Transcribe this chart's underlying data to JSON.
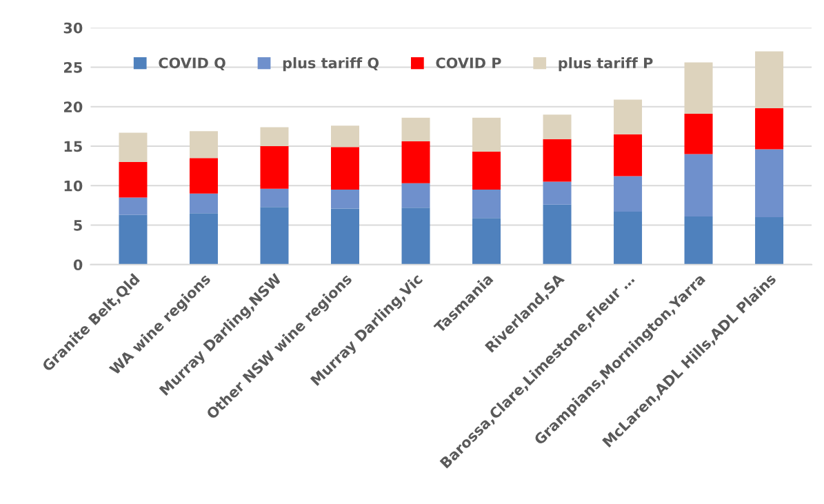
{
  "chart_data": {
    "type": "bar",
    "stacked": true,
    "categories": [
      "Granite Belt,Qld",
      "WA wine regions",
      "Murray Darling,NSW",
      "Other NSW wine regions",
      "Murray Darling,Vic",
      "Tasmania",
      "Riverland,SA",
      "Barossa,Clare,Limestone,Fleur …",
      "Grampians,Mornington,Yarra",
      "McLaren,ADL Hills,ADL Plains"
    ],
    "series": [
      {
        "name": "COVID Q",
        "color": "#4f81bd",
        "values": [
          6.3,
          6.5,
          7.3,
          7.1,
          7.2,
          5.9,
          7.6,
          6.7,
          6.1,
          6.0
        ]
      },
      {
        "name": "plus tariff Q",
        "color": "#6f90cc",
        "values": [
          2.2,
          2.5,
          2.3,
          2.4,
          3.1,
          3.6,
          2.9,
          4.5,
          7.9,
          8.6
        ]
      },
      {
        "name": "COVID P",
        "color": "#ff0000",
        "values": [
          4.5,
          4.5,
          5.4,
          5.4,
          5.3,
          4.8,
          5.4,
          5.3,
          5.1,
          5.2
        ]
      },
      {
        "name": "plus tariff P",
        "color": "#ddd3bd",
        "values": [
          3.7,
          3.4,
          2.4,
          2.7,
          3.0,
          4.3,
          3.1,
          4.4,
          6.5,
          7.2
        ]
      }
    ],
    "ylim": [
      0,
      30
    ],
    "yticks": [
      0,
      5,
      10,
      15,
      20,
      25,
      30
    ],
    "grid": "y",
    "legend": "top"
  }
}
